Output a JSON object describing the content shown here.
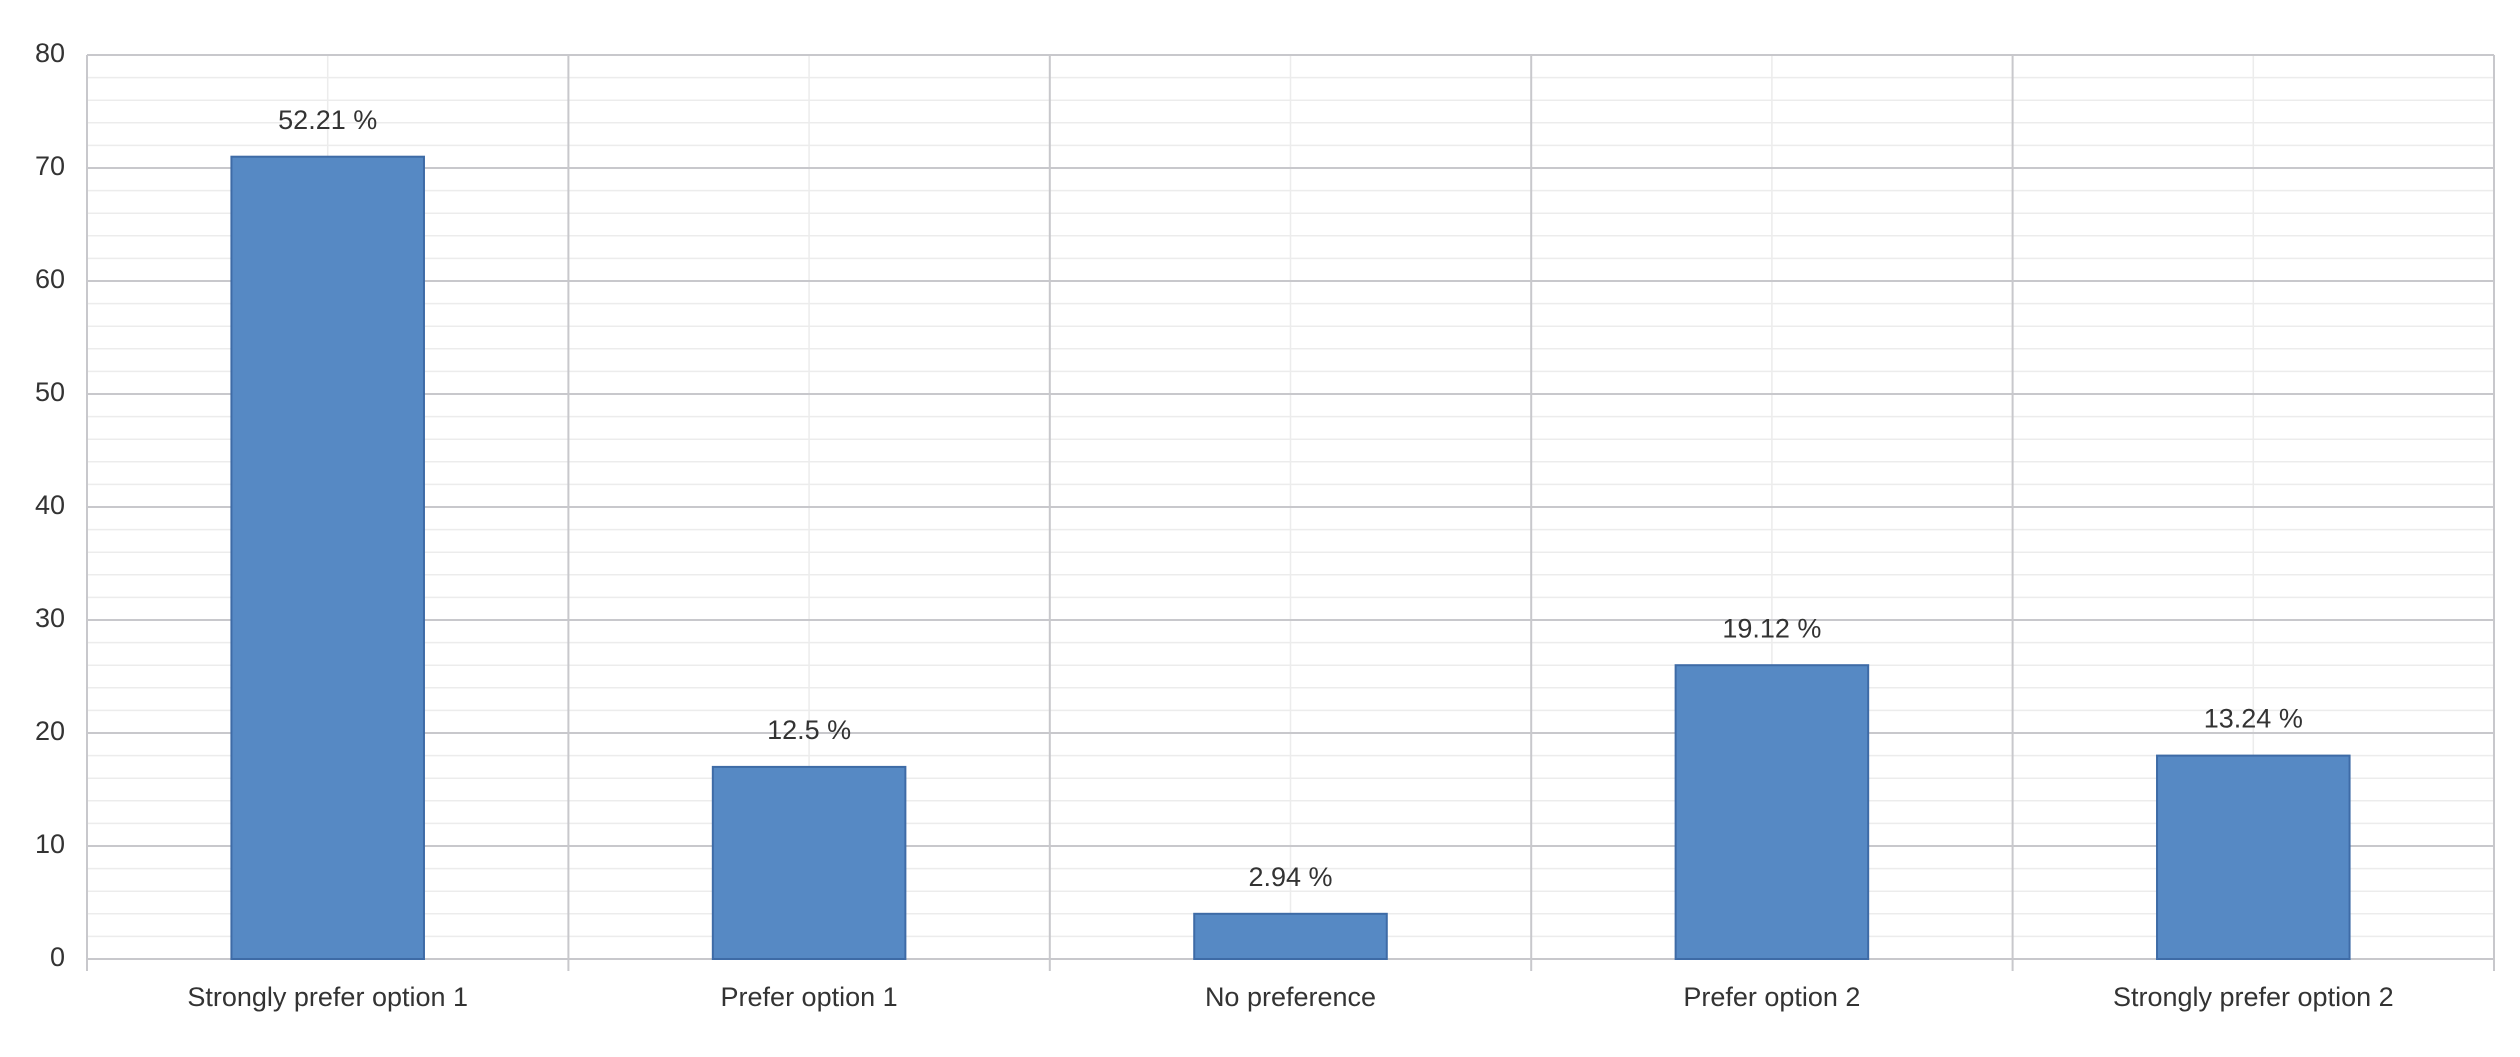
{
  "chart_data": {
    "type": "bar",
    "categories": [
      "Strongly prefer option 1",
      "Prefer option 1",
      "No preference",
      "Prefer option 2",
      "Strongly prefer option 2"
    ],
    "values": [
      71,
      17,
      4,
      26,
      18
    ],
    "data_labels": [
      "52.21 %",
      "12.5 %",
      "2.94 %",
      "19.12 %",
      "13.24 %"
    ],
    "color": "#5689c4",
    "ylim": [
      0,
      80
    ],
    "yticks": [
      0,
      10,
      20,
      30,
      40,
      50,
      60,
      70,
      80
    ],
    "grid": true,
    "minor_grid": true
  }
}
